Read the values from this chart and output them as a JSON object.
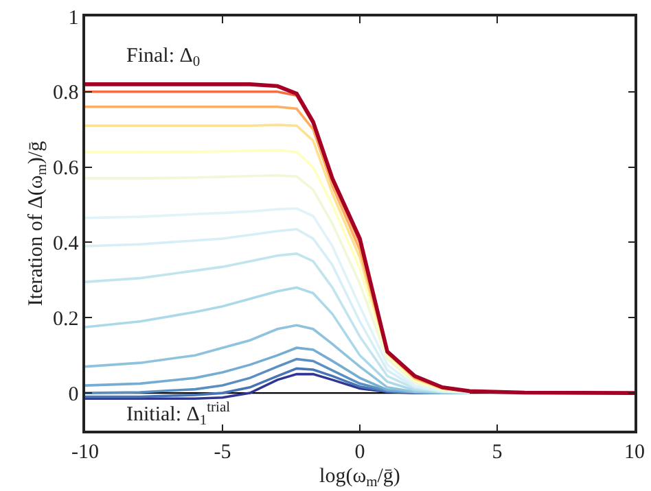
{
  "chart_data": {
    "type": "line",
    "xlabel": "log(ω$_{m}$/ḡ)",
    "ylabel": "Iteration of Δ(ω$_{m}$)/ḡ",
    "annotations": [
      "Final: Δ$_{0}$",
      "Initial: Δ$_{1}$$^{trial}$"
    ],
    "x": [
      -10,
      -8,
      -6,
      -5,
      -4,
      -3,
      -2.3,
      -1.7,
      -1,
      0,
      1,
      2,
      3,
      4,
      6,
      10
    ],
    "xlim": [
      -10,
      10
    ],
    "xticks": [
      -10,
      -5,
      0,
      5,
      10
    ],
    "ylim": [
      -0.1,
      1
    ],
    "yticks": [
      0,
      0.2,
      0.4,
      0.6,
      0.8,
      1
    ],
    "grid": false,
    "ref_lines": [
      {
        "axis": "y",
        "value": 0,
        "color": "#000000"
      }
    ],
    "series": [
      {
        "color": "#313695",
        "values": [
          -0.015,
          -0.015,
          -0.015,
          -0.012,
          0.0,
          0.035,
          0.05,
          0.05,
          0.035,
          0.012,
          0.003,
          0,
          0,
          0,
          null,
          null
        ]
      },
      {
        "color": "#4575b4",
        "values": [
          -0.01,
          -0.01,
          -0.005,
          0.0,
          0.015,
          0.045,
          0.065,
          0.062,
          0.045,
          0.017,
          0.004,
          0.001,
          0,
          0,
          null,
          null
        ]
      },
      {
        "color": "#5a8fc2",
        "values": [
          0.0,
          0.002,
          0.01,
          0.02,
          0.04,
          0.07,
          0.09,
          0.085,
          0.06,
          0.025,
          0.006,
          0.001,
          0,
          0,
          null,
          null
        ]
      },
      {
        "color": "#74add1",
        "values": [
          0.02,
          0.025,
          0.04,
          0.055,
          0.075,
          0.1,
          0.12,
          0.115,
          0.085,
          0.04,
          0.008,
          0.002,
          0,
          0,
          null,
          null
        ]
      },
      {
        "color": "#8fc3dd",
        "values": [
          0.07,
          0.08,
          0.1,
          0.12,
          0.14,
          0.17,
          0.18,
          0.17,
          0.13,
          0.07,
          0.015,
          0.003,
          0.001,
          0,
          null,
          null
        ]
      },
      {
        "color": "#abd9e9",
        "values": [
          0.175,
          0.19,
          0.215,
          0.23,
          0.25,
          0.27,
          0.28,
          0.265,
          0.21,
          0.1,
          0.03,
          0.007,
          0.002,
          0,
          null,
          null
        ]
      },
      {
        "color": "#c2e4ef",
        "values": [
          0.295,
          0.305,
          0.325,
          0.335,
          0.35,
          0.365,
          0.37,
          0.35,
          0.28,
          0.15,
          0.045,
          0.012,
          0.003,
          0.001,
          null,
          null
        ]
      },
      {
        "color": "#d6eef5",
        "values": [
          0.39,
          0.395,
          0.405,
          0.41,
          0.42,
          0.43,
          0.435,
          0.41,
          0.34,
          0.19,
          0.06,
          0.016,
          0.004,
          0.001,
          null,
          null
        ]
      },
      {
        "color": "#e0f3f8",
        "values": [
          0.465,
          0.468,
          0.475,
          0.478,
          0.482,
          0.488,
          0.49,
          0.47,
          0.39,
          0.23,
          0.075,
          0.02,
          0.005,
          0.001,
          null,
          null
        ]
      },
      {
        "color": "#f0f8d8",
        "values": [
          0.57,
          0.57,
          0.572,
          0.574,
          0.576,
          0.578,
          0.575,
          0.54,
          0.45,
          0.29,
          0.09,
          0.028,
          0.008,
          0.002,
          null,
          null
        ]
      },
      {
        "color": "#ffffbf",
        "values": [
          0.64,
          0.64,
          0.641,
          0.642,
          0.643,
          0.645,
          0.64,
          0.6,
          0.5,
          0.33,
          0.1,
          0.033,
          0.01,
          0.003,
          null,
          null
        ]
      },
      {
        "color": "#fee090",
        "values": [
          0.71,
          0.71,
          0.71,
          0.71,
          0.71,
          0.712,
          0.71,
          0.67,
          0.53,
          0.36,
          0.105,
          0.037,
          0.011,
          0.003,
          null,
          null
        ]
      },
      {
        "color": "#fdae61",
        "values": [
          0.76,
          0.76,
          0.76,
          0.76,
          0.76,
          0.76,
          0.755,
          0.7,
          0.55,
          0.38,
          0.107,
          0.04,
          0.013,
          0.004,
          null,
          null
        ]
      },
      {
        "color": "#f46d43",
        "values": [
          0.8,
          0.8,
          0.8,
          0.8,
          0.8,
          0.8,
          0.79,
          0.715,
          0.565,
          0.4,
          0.108,
          0.043,
          0.014,
          0.005,
          null,
          null
        ]
      },
      {
        "color": "#a50026",
        "values": [
          0.82,
          0.82,
          0.82,
          0.82,
          0.82,
          0.815,
          0.795,
          0.72,
          0.57,
          0.41,
          0.11,
          0.045,
          0.015,
          0.005,
          0.001,
          0
        ]
      }
    ]
  }
}
